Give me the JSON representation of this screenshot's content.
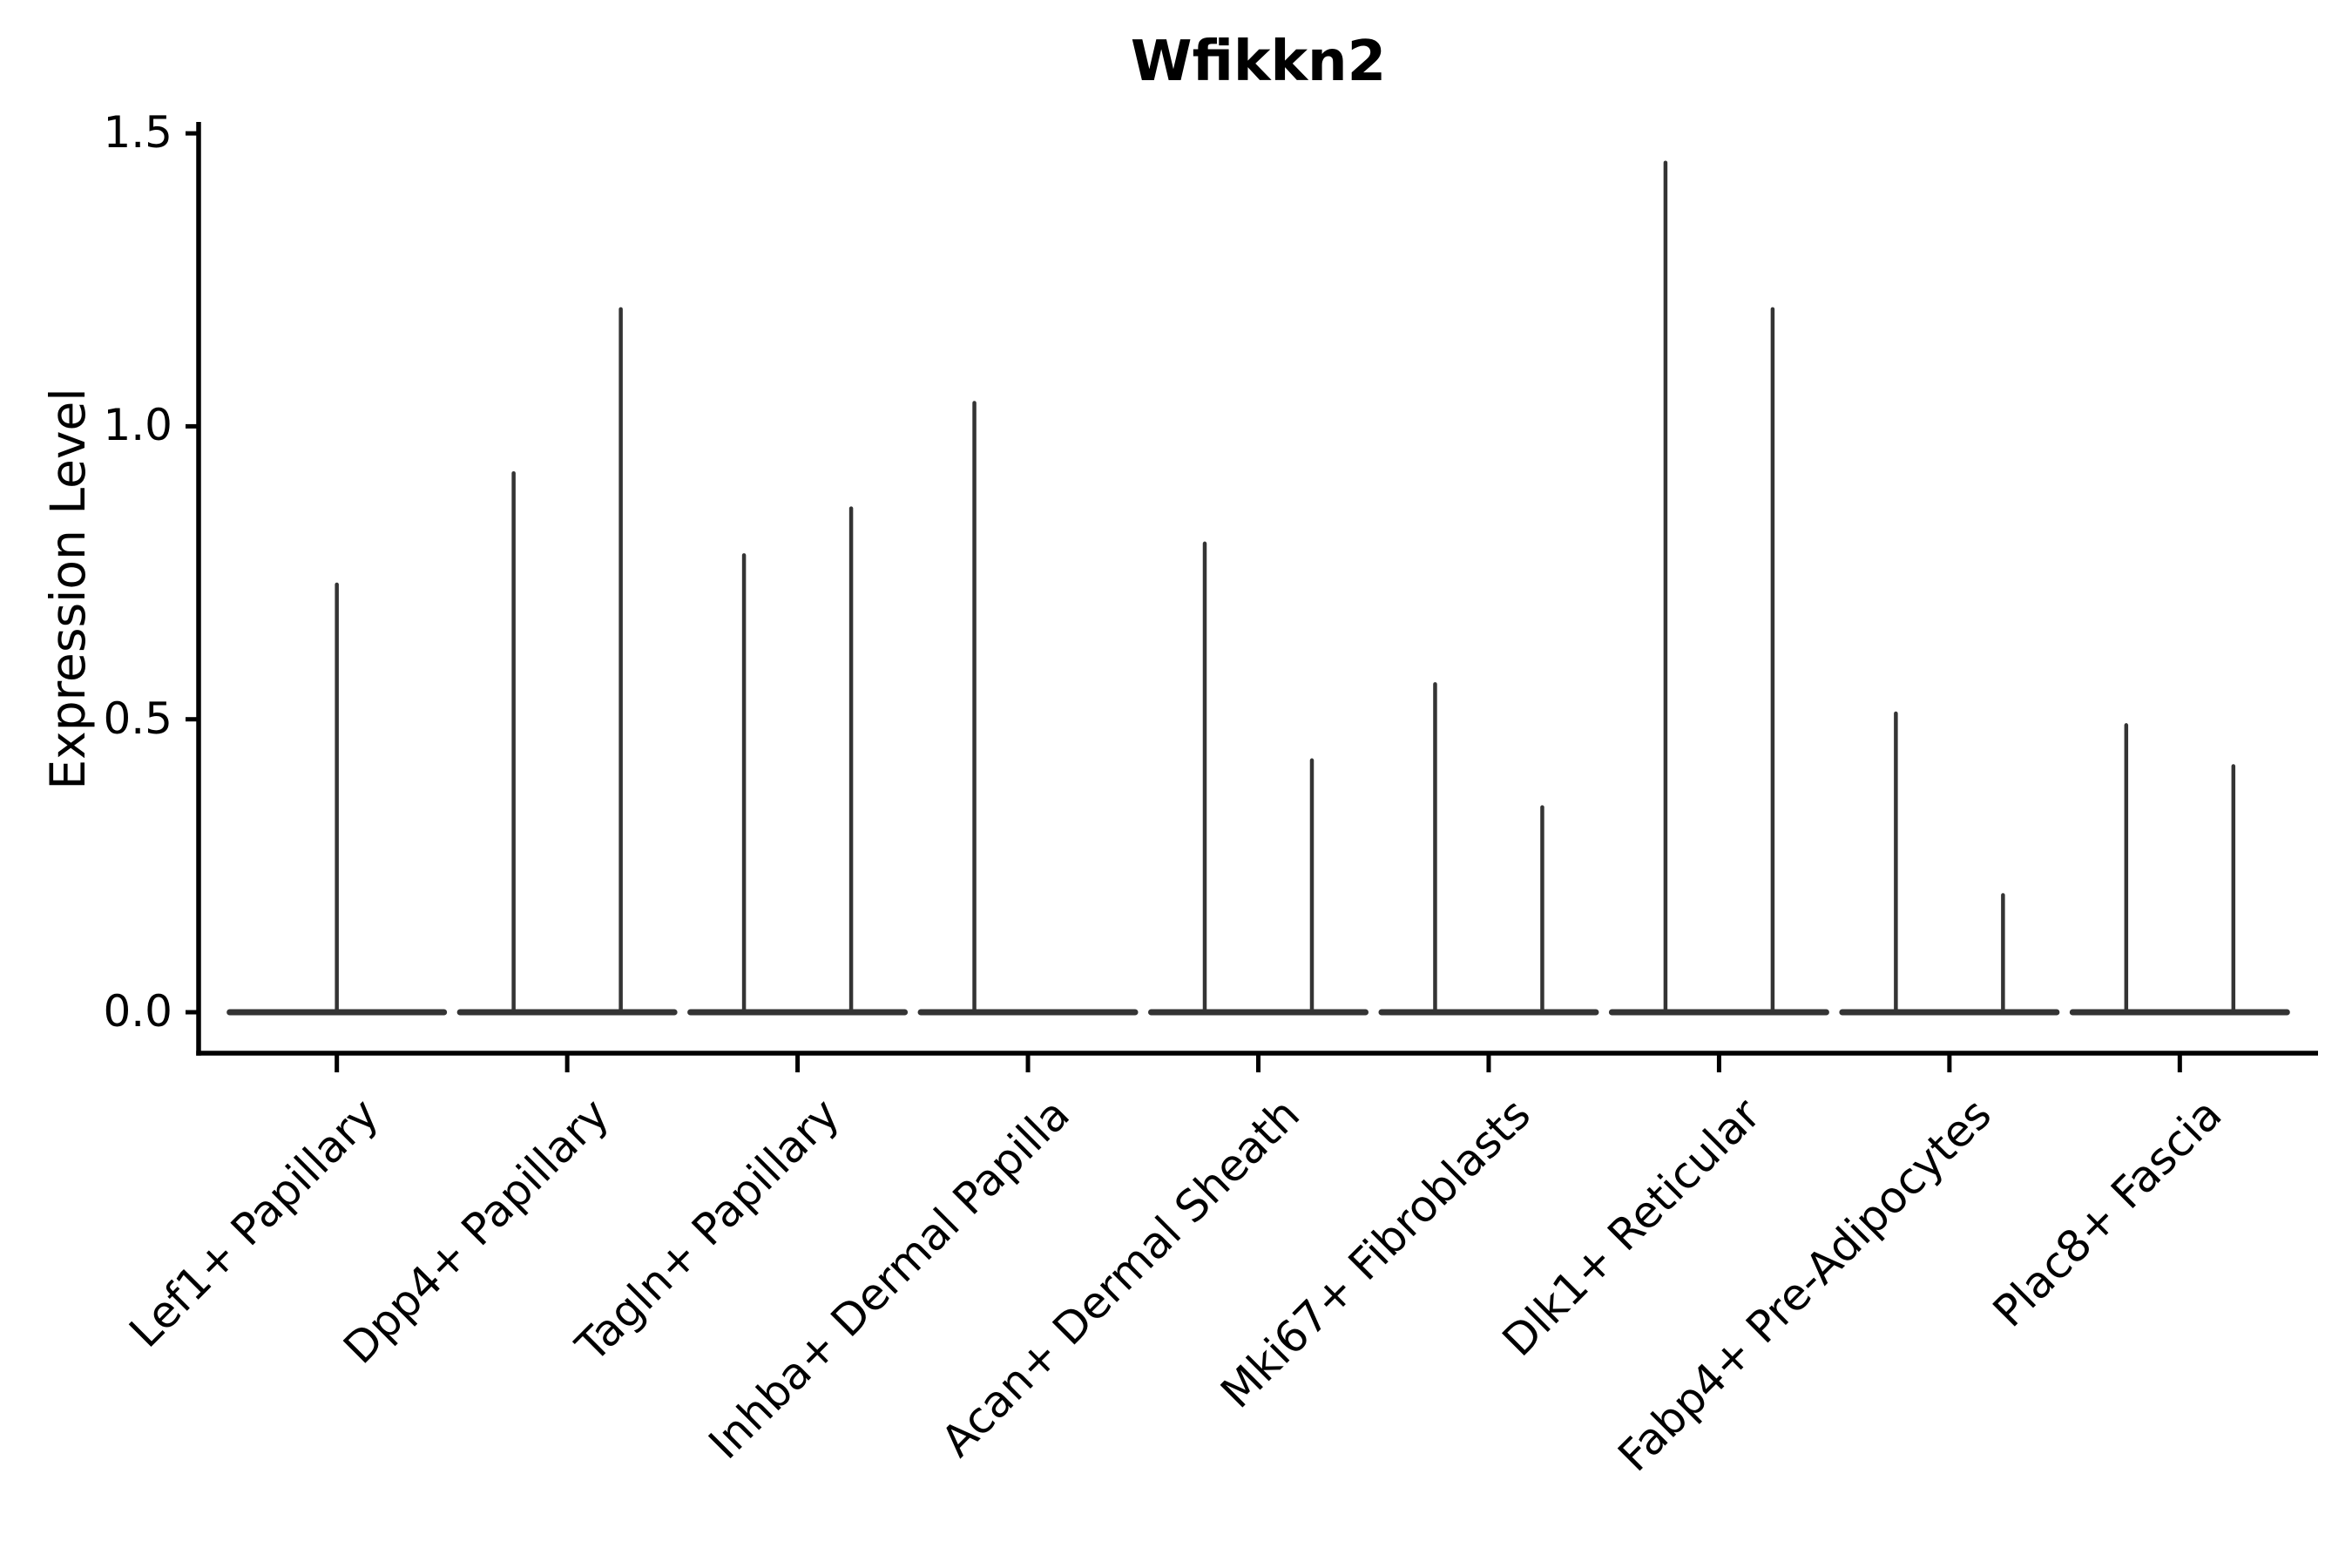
{
  "chart_data": {
    "type": "violin",
    "title": "Wfikkn2",
    "ylabel": "Expression Level",
    "xlabel": "",
    "yticks": [
      0.0,
      0.5,
      1.0,
      1.5
    ],
    "ytick_labels": [
      "0.0",
      "0.5",
      "1.0",
      "1.5"
    ],
    "ylim": [
      -0.07,
      1.52
    ],
    "grid": false,
    "legend": "none",
    "categories": [
      "Lef1+ Papillary",
      "Dpp4+ Papillary",
      "Tagln+ Papillary",
      "Inhba+ Dermal Papilla",
      "Acan+ Dermal Sheath",
      "Mki67+ Fibroblasts",
      "Dlk1+ Reticular",
      "Fabp4+ Pre-Adipocytes",
      "Plac8+ Fascia"
    ],
    "violins": [
      {
        "category": "Lef1+ Papillary",
        "spikes": [
          {
            "pos": "center",
            "max": 0.73
          }
        ]
      },
      {
        "category": "Dpp4+ Papillary",
        "spikes": [
          {
            "pos": "left",
            "max": 0.92
          },
          {
            "pos": "right",
            "max": 1.2
          }
        ]
      },
      {
        "category": "Tagln+ Papillary",
        "spikes": [
          {
            "pos": "left",
            "max": 0.78
          },
          {
            "pos": "right",
            "max": 0.86
          }
        ]
      },
      {
        "category": "Inhba+ Dermal Papilla",
        "spikes": [
          {
            "pos": "left",
            "max": 1.04
          },
          {
            "pos": "right",
            "max": 0.0
          }
        ]
      },
      {
        "category": "Acan+ Dermal Sheath",
        "spikes": [
          {
            "pos": "left",
            "max": 0.8
          },
          {
            "pos": "right",
            "max": 0.43
          }
        ]
      },
      {
        "category": "Mki67+ Fibroblasts",
        "spikes": [
          {
            "pos": "left",
            "max": 0.56
          },
          {
            "pos": "right",
            "max": 0.35
          }
        ]
      },
      {
        "category": "Dlk1+ Reticular",
        "spikes": [
          {
            "pos": "left",
            "max": 1.45
          },
          {
            "pos": "right",
            "max": 1.2
          }
        ]
      },
      {
        "category": "Fabp4+ Pre-Adipocytes",
        "spikes": [
          {
            "pos": "left",
            "max": 0.51
          },
          {
            "pos": "right",
            "max": 0.2
          }
        ]
      },
      {
        "category": "Plac8+ Fascia",
        "spikes": [
          {
            "pos": "left",
            "max": 0.49
          },
          {
            "pos": "right",
            "max": 0.42
          }
        ]
      }
    ],
    "colors": {
      "violin": "#343434",
      "axis": "#000000",
      "text": "#000000",
      "background": "#ffffff"
    }
  }
}
